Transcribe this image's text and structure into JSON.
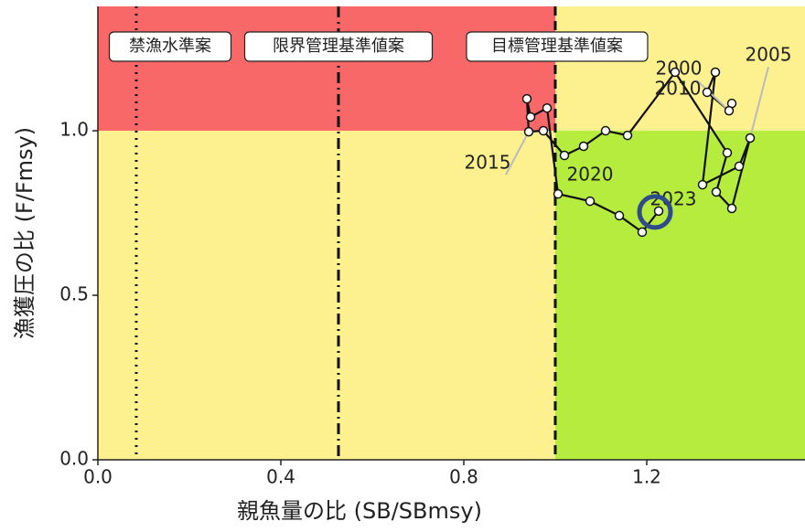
{
  "chart_data": {
    "type": "kobe",
    "xlabel": "親魚量の比 (SB/SBmsy)",
    "ylabel": "漁獲圧の比 (F/Fmsy)",
    "xlim": [
      0,
      1.546
    ],
    "ylim": [
      0,
      1.378
    ],
    "xticks": [
      {
        "value": 0,
        "label": "0.0"
      },
      {
        "value": 0.4,
        "label": "0.4"
      },
      {
        "value": 0.8,
        "label": "0.8"
      },
      {
        "value": 1.2,
        "label": "1.2"
      }
    ],
    "yticks": [
      {
        "value": 0,
        "label": "0.0"
      },
      {
        "value": 0.5,
        "label": "0.5"
      },
      {
        "value": 1,
        "label": "1.0"
      }
    ],
    "zone_colors": {
      "red": "#f86868",
      "yellow": "#fdf08f",
      "green": "#b5ec3e"
    },
    "reference_lines": [
      {
        "label": "禁漁水準案",
        "x": 0.084,
        "style": "dotted"
      },
      {
        "label": "限界管理基準値案",
        "x": 0.526,
        "style": "dashdot"
      },
      {
        "label": "目標管理基準値案",
        "x": 1.0,
        "style": "dashed"
      }
    ],
    "x": [
      1.386,
      1.38,
      1.332,
      1.35,
      1.322,
      1.402,
      1.426,
      1.386,
      1.352,
      1.376,
      1.262,
      1.158,
      1.11,
      1.062,
      1.02,
      0.974,
      0.942,
      0.938,
      0.946,
      0.982,
      1.006,
      1.076,
      1.14,
      1.19,
      1.226
    ],
    "values": [
      1.083,
      1.061,
      1.117,
      1.178,
      0.836,
      0.892,
      0.978,
      0.764,
      0.814,
      0.933,
      1.178,
      0.986,
      1.0,
      0.953,
      0.925,
      1.0,
      0.997,
      1.097,
      1.042,
      1.069,
      0.808,
      0.786,
      0.742,
      0.692,
      0.756
    ],
    "point_labels": [
      null,
      "2000",
      null,
      null,
      null,
      null,
      "2005",
      null,
      null,
      null,
      null,
      "2010",
      null,
      null,
      null,
      null,
      "2015",
      null,
      null,
      null,
      null,
      "2020",
      null,
      null,
      "2023"
    ],
    "highlight_color": "#2f4b8c"
  }
}
